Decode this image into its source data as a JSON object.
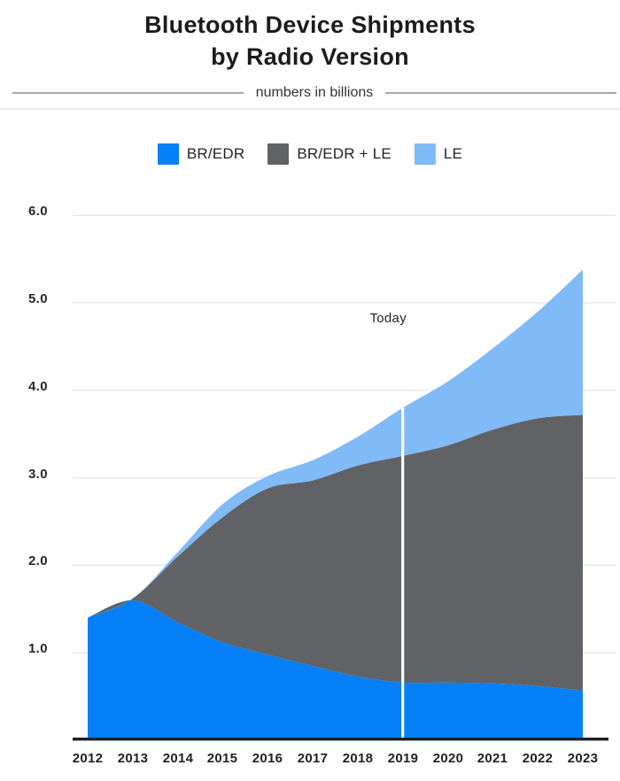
{
  "header": {
    "title_line1": "Bluetooth Device Shipments",
    "title_line2": "by Radio Version",
    "subtitle": "numbers in billions"
  },
  "chart_data": {
    "type": "area",
    "stacked": true,
    "title": "Bluetooth Device Shipments by Radio Version",
    "subtitle": "numbers in billions",
    "unit": "billions",
    "x": [
      "2012",
      "2013",
      "2014",
      "2015",
      "2016",
      "2017",
      "2018",
      "2019",
      "2020",
      "2021",
      "2022",
      "2023"
    ],
    "series": [
      {
        "name": "BR/EDR",
        "color": "#0580f6",
        "values": [
          1.4,
          1.6,
          1.35,
          1.12,
          0.98,
          0.85,
          0.73,
          0.66,
          0.66,
          0.65,
          0.62,
          0.57
        ]
      },
      {
        "name": "BR/EDR + LE",
        "color": "#606266",
        "values": [
          0.0,
          0.02,
          0.75,
          1.43,
          1.9,
          2.12,
          2.41,
          2.59,
          2.71,
          2.9,
          3.06,
          3.15
        ]
      },
      {
        "name": "LE",
        "color": "#80baf7",
        "values": [
          0.0,
          0.0,
          0.05,
          0.15,
          0.14,
          0.23,
          0.33,
          0.55,
          0.73,
          0.93,
          1.22,
          1.66
        ]
      }
    ],
    "totals": [
      1.4,
      1.62,
      2.15,
      2.7,
      3.02,
      3.2,
      3.47,
      3.8,
      4.1,
      4.48,
      4.9,
      5.38
    ],
    "yticks": [
      "1.0",
      "2.0",
      "3.0",
      "4.0",
      "5.0",
      "6.0"
    ],
    "ylim": [
      0,
      6.2
    ],
    "grid": "horizontal",
    "legend_position": "top",
    "annotations": [
      {
        "text": "Today",
        "x": "2019"
      }
    ]
  },
  "colors": {
    "background": "#ffffff",
    "title_text": "#1c1c1e",
    "subtitle_text": "#333333",
    "divider_rule": "#a9a9a9",
    "gridline": "#e8e8e8",
    "axis_line": "#1b1f29",
    "axis_label_text": "#26282b",
    "today_marker": "#ffffff"
  }
}
